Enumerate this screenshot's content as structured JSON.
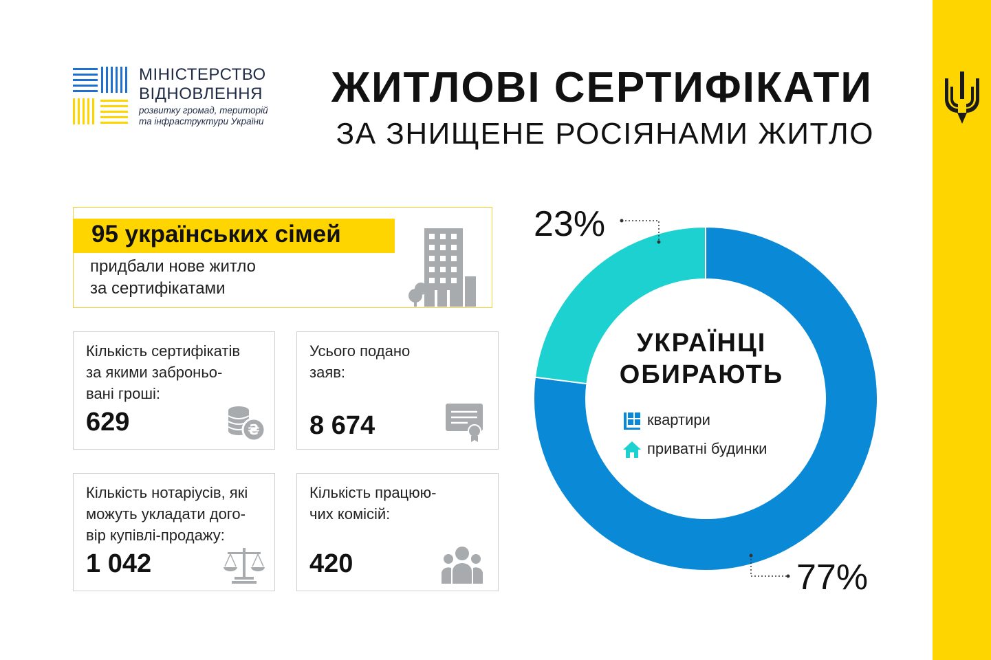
{
  "header": {
    "logo": {
      "line1": "МІНІСТЕРСТВО",
      "line2": "ВІДНОВЛЕННЯ",
      "line3": "розвитку громад, територій",
      "line4": "та інфраструктури України"
    },
    "title": "ЖИТЛОВІ СЕРТИФІКАТИ",
    "subtitle": "ЗА ЗНИЩЕНЕ РОСІЯНАМИ ЖИТЛО"
  },
  "hero": {
    "title": "95 українських сімей",
    "desc_line1": "придбали нове житло",
    "desc_line2": "за сертифікатами",
    "icon": "building-icon"
  },
  "stats": [
    {
      "label": "Кількість сертифікатів\nза якими заброньо-\nвані гроші:",
      "value": "629",
      "icon": "coins-icon"
    },
    {
      "label": "Усього подано\nзаяв:",
      "value": "8 674",
      "icon": "certificate-icon"
    },
    {
      "label": "Кількість нотаріусів, які\nможуть укладати дого-\nвір купівлі-продажу:",
      "value": "1 042",
      "icon": "scales-icon"
    },
    {
      "label": "Кількість працюю-\nчих комісій:",
      "value": "420",
      "icon": "people-icon"
    }
  ],
  "chart": {
    "center_title_line1": "УКРАЇНЦІ",
    "center_title_line2": "ОБИРАЮТЬ",
    "pct_apartments": "77%",
    "pct_houses": "23%"
  },
  "chart_data": {
    "type": "pie",
    "categories": [
      "квартири",
      "приватні будинки"
    ],
    "values": [
      77,
      23
    ],
    "colors": [
      "#0a8ad6",
      "#1dd1d1"
    ],
    "title": "УКРАЇНЦІ ОБИРАЮТЬ"
  },
  "colors": {
    "accent_yellow": "#ffd500",
    "apartments_blue": "#0a8ad6",
    "houses_teal": "#1dd1d1",
    "icon_grey": "#a8abad",
    "logo_blue": "#1f6fd1"
  }
}
